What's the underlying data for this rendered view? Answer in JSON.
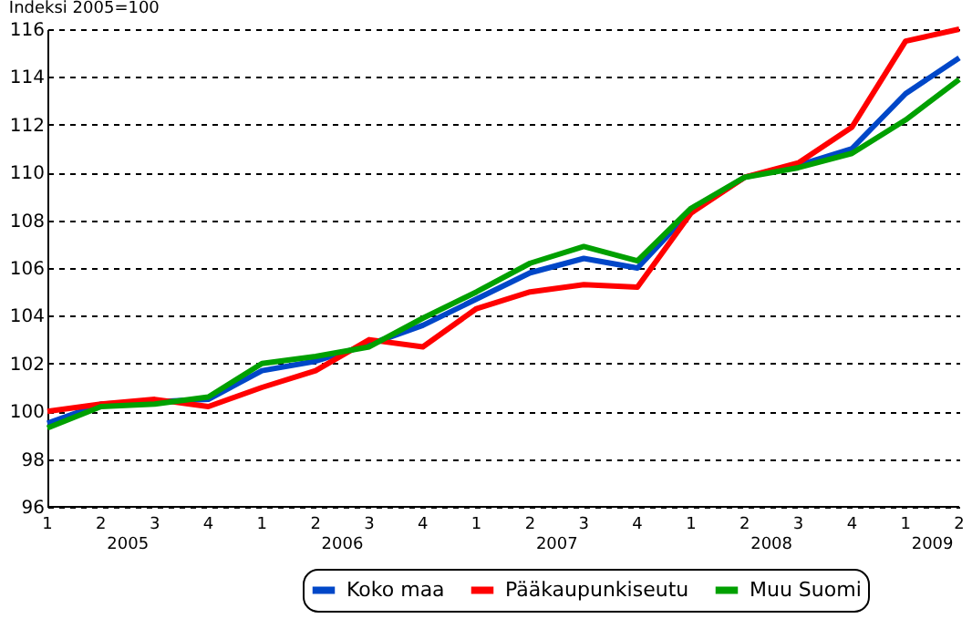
{
  "chart_data": {
    "type": "line",
    "title": "Indeksi 2005=100",
    "categories": [
      "1",
      "2",
      "3",
      "4",
      "1",
      "2",
      "3",
      "4",
      "1",
      "2",
      "3",
      "4",
      "1",
      "2",
      "3",
      "4",
      "1",
      "2"
    ],
    "annotations": [
      "2005",
      "2006",
      "2007",
      "2008",
      "2009"
    ],
    "series": [
      {
        "name": "Koko maa",
        "color": "#0047c8",
        "values": [
          99.5,
          100.3,
          100.4,
          100.5,
          101.7,
          102.1,
          102.8,
          103.6,
          104.7,
          105.8,
          106.4,
          106.0,
          108.4,
          109.8,
          110.3,
          111.0,
          113.3,
          114.8
        ]
      },
      {
        "name": "Pääkaupunkiseutu",
        "color": "#ff0000",
        "values": [
          100.0,
          100.3,
          100.5,
          100.2,
          101.0,
          101.7,
          103.0,
          102.7,
          104.3,
          105.0,
          105.3,
          105.2,
          108.3,
          109.8,
          110.4,
          111.9,
          115.5,
          116.0
        ]
      },
      {
        "name": "Muu Suomi",
        "color": "#00a000",
        "values": [
          99.3,
          100.2,
          100.3,
          100.6,
          102.0,
          102.3,
          102.7,
          103.9,
          105.0,
          106.2,
          106.9,
          106.3,
          108.5,
          109.8,
          110.2,
          110.8,
          112.2,
          113.9
        ]
      }
    ],
    "ylim": [
      96,
      116
    ],
    "yticks": [
      96,
      98,
      100,
      102,
      104,
      106,
      108,
      110,
      112,
      114,
      116
    ],
    "grid": "y",
    "legend": "bottom",
    "line_style": "solid",
    "marker": "none"
  }
}
